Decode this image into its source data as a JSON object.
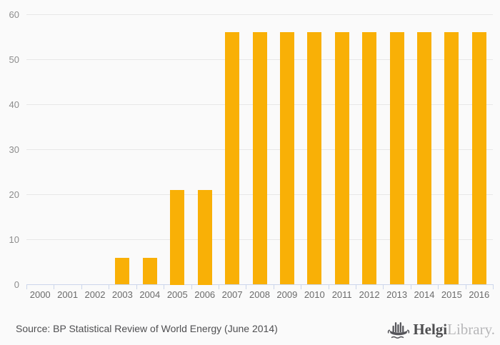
{
  "chart": {
    "background": "#fafafa",
    "bar_color": "#f9b006",
    "gridline_color": "#e7e7e7",
    "axis_color": "#ccd6eb",
    "y_label_color": "#8d8d8d",
    "x_label_color": "#6b6b6b"
  },
  "chart_data": {
    "type": "bar",
    "categories": [
      "2000",
      "2001",
      "2002",
      "2003",
      "2004",
      "2005",
      "2006",
      "2007",
      "2008",
      "2009",
      "2010",
      "2011",
      "2012",
      "2013",
      "2014",
      "2015",
      "2016"
    ],
    "values": [
      0,
      0,
      0,
      6,
      6,
      21,
      21,
      56,
      56,
      56,
      56,
      56,
      56,
      56,
      56,
      56,
      56
    ],
    "ylim": [
      0,
      60
    ],
    "yticks": [
      0,
      10,
      20,
      30,
      40,
      50,
      60
    ],
    "grid": true,
    "legend": "none"
  },
  "footer": {
    "source": "Source: BP Statistical Review of World Energy (June 2014)",
    "source_color": "#4f4f51",
    "logo": {
      "brand_primary": "Helgi",
      "brand_secondary": "Library.",
      "primary_color": "#4e4e50",
      "secondary_color": "#b7b7b9",
      "icon_color": "#55555a"
    }
  }
}
